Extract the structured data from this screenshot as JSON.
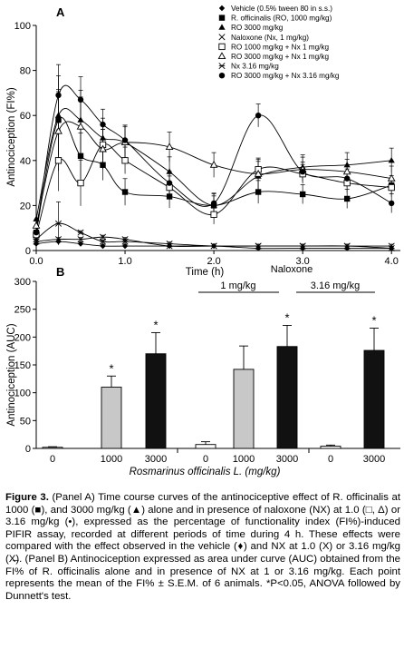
{
  "chart_data": [
    {
      "type": "line",
      "panel_label": "A",
      "xlabel": "Time (h)",
      "ylabel": "Antinociception (FI%)",
      "xlim": [
        0,
        4.1
      ],
      "ylim": [
        0,
        100
      ],
      "x_ticks": [
        "0.0",
        "1.0",
        "2.0",
        "3.0",
        "4.0"
      ],
      "y_ticks": [
        "0",
        "20",
        "40",
        "60",
        "80",
        "100"
      ],
      "x": [
        0,
        0.25,
        0.5,
        0.75,
        1.0,
        1.5,
        2.0,
        2.5,
        3.0,
        3.5,
        4.0
      ],
      "series": [
        {
          "name": "Vehicle (0.5% tween 80 in s.s.)",
          "marker": "diamond",
          "values": [
            3,
            4,
            3,
            2,
            2,
            2,
            2,
            1,
            1,
            1,
            1
          ]
        },
        {
          "name": "R. officinalis (RO, 1000 mg/kg)",
          "marker": "square-filled",
          "values": [
            8,
            58,
            42,
            38,
            26,
            24,
            20,
            26,
            25,
            23,
            29
          ]
        },
        {
          "name": "RO 3000 mg/kg",
          "marker": "triangle-filled",
          "values": [
            14,
            60,
            58,
            50,
            48,
            35,
            20,
            33,
            37,
            38,
            40
          ]
        },
        {
          "name": "Naloxone (Nx, 1 mg/kg)",
          "marker": "x",
          "values": [
            4,
            5,
            5,
            6,
            5,
            2,
            2,
            2,
            2,
            2,
            2
          ]
        },
        {
          "name": "RO 1000 mg/kg + Nx 1 mg/kg",
          "marker": "square-open",
          "values": [
            7,
            40,
            30,
            47,
            40,
            28,
            16,
            36,
            34,
            30,
            28
          ]
        },
        {
          "name": "RO 3000 mg/kg + Nx 1 mg/kg",
          "marker": "triangle-open",
          "values": [
            11,
            53,
            55,
            45,
            48,
            46,
            38,
            34,
            36,
            35,
            32
          ]
        },
        {
          "name": "Nx 3.16 mg/kg",
          "marker": "x-barred",
          "values": [
            5,
            12,
            8,
            4,
            4,
            3,
            2,
            2,
            2,
            2,
            1
          ]
        },
        {
          "name": "RO 3000 mg/kg + Nx 3.16 mg/kg",
          "marker": "circle-filled",
          "values": [
            8,
            69,
            67,
            56,
            49,
            30,
            21,
            60,
            35,
            32,
            21
          ]
        }
      ]
    },
    {
      "type": "bar",
      "panel_label": "B",
      "ylabel": "Antinociception (AUC)",
      "xlabel": "Rosmarinus officinalis L. (mg/kg)",
      "ylim": [
        0,
        300
      ],
      "y_ticks": [
        "0",
        "50",
        "100",
        "150",
        "200",
        "250",
        "300"
      ],
      "naloxone_title": "Naloxone",
      "group_labels": [
        "1 mg/kg",
        "3.16 mg/kg"
      ],
      "categories": [
        "0",
        "1000",
        "3000",
        "0",
        "1000",
        "3000",
        "0",
        "3000"
      ],
      "values": [
        2,
        110,
        170,
        7,
        142,
        183,
        4,
        176
      ],
      "errors": [
        1,
        20,
        38,
        5,
        42,
        38,
        2,
        40
      ],
      "fill": [
        "#ffffff",
        "#c8c8c8",
        "#111111",
        "#ffffff",
        "#c8c8c8",
        "#111111",
        "#ffffff",
        "#111111"
      ],
      "significant": [
        false,
        true,
        true,
        false,
        false,
        true,
        false,
        true
      ],
      "significance_mark": "*"
    }
  ],
  "caption": {
    "label": "Figure 3.",
    "text": " (Panel A) Time course curves of the antinociceptive effect of R. officinalis at 1000 (■), and 3000 mg/kg (▲) alone and in presence of naloxone (NX) at 1.0 (□, Δ) or 3.16 mg/kg (•), expressed as the percentage of functionality index (FI%)-induced PIFIR assay, recorded at different periods of time during 4 h. These effects were compared with the effect observed in the vehicle (♦) and NX at 1.0 (X) or 3.16 mg/kg (X̶). (Panel B) Antinociception expressed as area under curve (AUC) obtained from the FI% of R. officinalis alone and in presence of NX at 1 or 3.16 mg/kg. Each point represents the mean of the FI% ± S.E.M. of 6 animals. *P<0.05, ANOVA followed by Dunnett's test."
  }
}
